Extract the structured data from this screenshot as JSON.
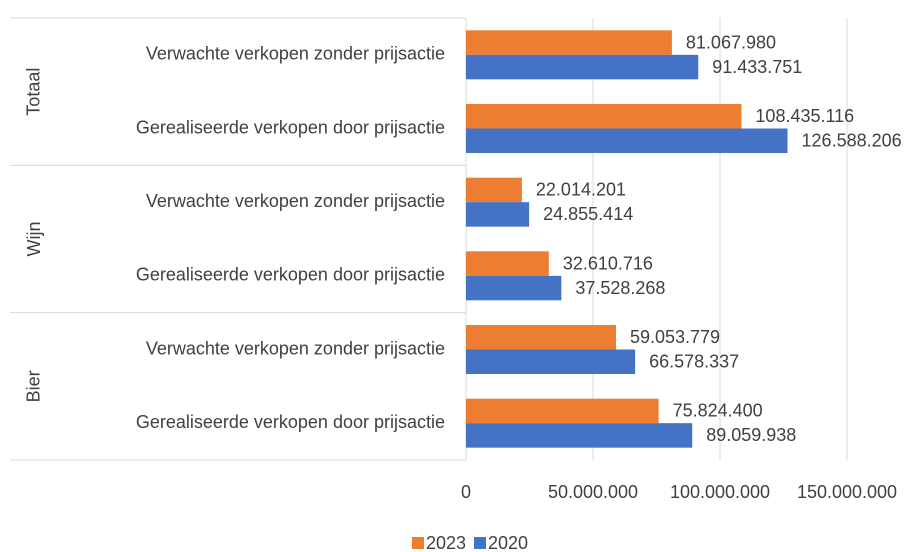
{
  "chart_data": {
    "type": "bar",
    "orientation": "horizontal",
    "groups": [
      "Totaal",
      "Wijn",
      "Bier"
    ],
    "categories": [
      "Verwachte verkopen zonder prijsactie",
      "Gerealiseerde verkopen door prijsactie",
      "Verwachte verkopen zonder prijsactie",
      "Gerealiseerde verkopen door prijsactie",
      "Verwachte verkopen zonder prijsactie",
      "Gerealiseerde verkopen door prijsactie"
    ],
    "series": [
      {
        "name": "2023",
        "color": "#ED7D31",
        "values": [
          81067980,
          108435116,
          22014201,
          32610716,
          59053779,
          75824400
        ],
        "value_labels": [
          "81.067.980",
          "108.435.116",
          "22.014.201",
          "32.610.716",
          "59.053.779",
          "75.824.400"
        ]
      },
      {
        "name": "2020",
        "color": "#4472C4",
        "values": [
          91433751,
          126588206,
          24855414,
          37528268,
          66578337,
          89059938
        ],
        "value_labels": [
          "91.433.751",
          "126.588.206",
          "24.855.414",
          "37.528.268",
          "66.578.337",
          "89.059.938"
        ]
      }
    ],
    "xlim": [
      0,
      150000000
    ],
    "xticks": [
      0,
      {
        "value": 50000000,
        "label": "50.000.000"
      },
      {
        "value": 100000000,
        "label": "100.000.000"
      },
      {
        "value": 150000000,
        "label": "150.000.000"
      }
    ],
    "grid": true,
    "legend": "bottom"
  }
}
